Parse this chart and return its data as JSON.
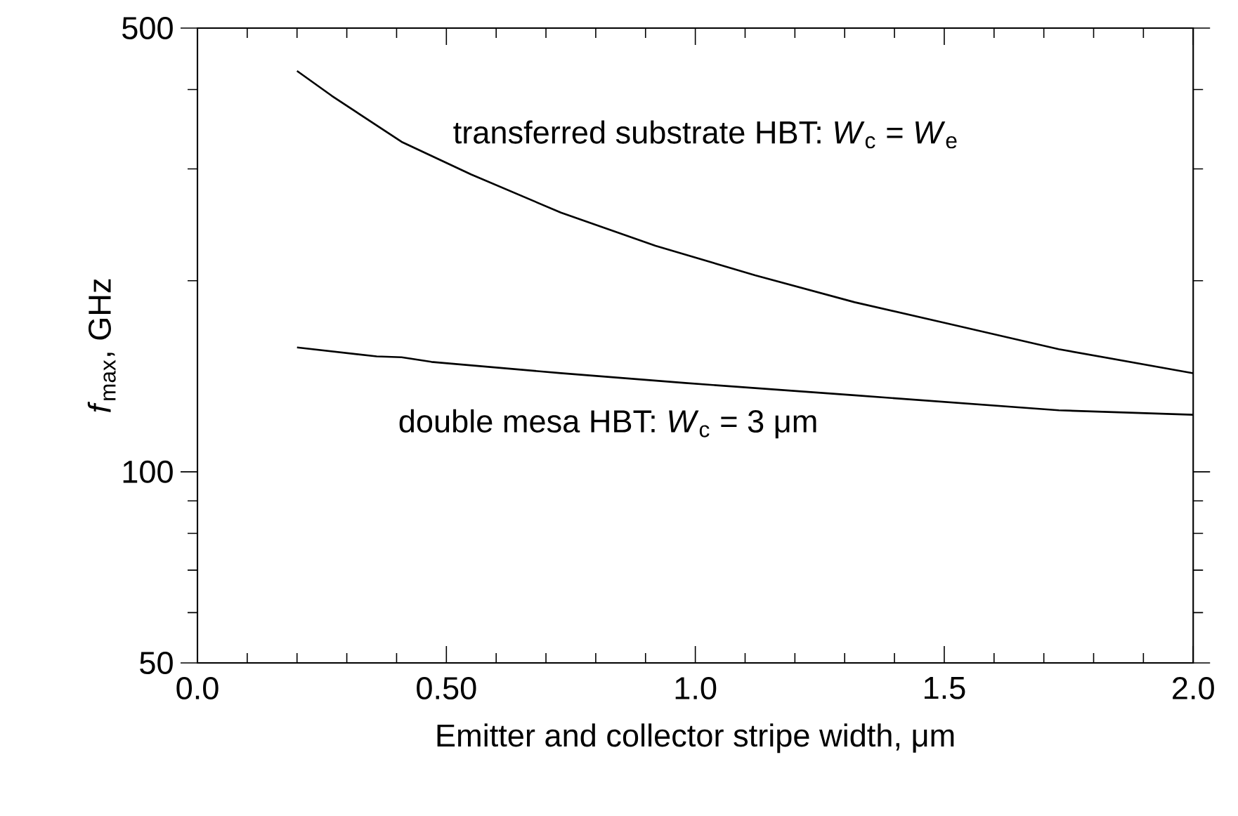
{
  "chart_data": {
    "type": "line",
    "xlabel": "Emitter and collector stripe width,  μm",
    "ylabel": "*f*$_{max}$,  GHz",
    "xlim": [
      0,
      2
    ],
    "ylim": [
      50,
      500
    ],
    "log": "y",
    "grid": false,
    "marker": "none",
    "line_style": "solid",
    "xticks": [
      {
        "value": 0,
        "label": "0.0"
      },
      {
        "value": 0.1,
        "label": null
      },
      {
        "value": 0.2,
        "label": null
      },
      {
        "value": 0.3,
        "label": null
      },
      {
        "value": 0.4,
        "label": null
      },
      {
        "value": 0.5,
        "label": "0.50"
      },
      {
        "value": 0.6,
        "label": null
      },
      {
        "value": 0.7,
        "label": null
      },
      {
        "value": 0.8,
        "label": null
      },
      {
        "value": 0.9,
        "label": null
      },
      {
        "value": 1,
        "label": "1.0"
      },
      {
        "value": 1.1,
        "label": null
      },
      {
        "value": 1.2,
        "label": null
      },
      {
        "value": 1.3,
        "label": null
      },
      {
        "value": 1.4,
        "label": null
      },
      {
        "value": 1.5,
        "label": "1.5"
      },
      {
        "value": 1.6,
        "label": null
      },
      {
        "value": 1.7,
        "label": null
      },
      {
        "value": 1.8,
        "label": null
      },
      {
        "value": 1.9,
        "label": null
      },
      {
        "value": 2,
        "label": "2.0"
      }
    ],
    "yticks": [
      50,
      {
        "value": 60,
        "label": null
      },
      {
        "value": 70,
        "label": null
      },
      {
        "value": 80,
        "label": null
      },
      {
        "value": 90,
        "label": null
      },
      100,
      {
        "value": 200,
        "label": null
      },
      {
        "value": 300,
        "label": null
      },
      {
        "value": 400,
        "label": null
      },
      500
    ],
    "annotations": [
      "transferred substrate HBT: *W*$_{c}$ = *W*$_{e}$",
      "double mesa HBT: *W*$_{c}$ = 3 μm"
    ],
    "series": [
      {
        "color": "#000000",
        "x": [
          0.2,
          0.27,
          0.41,
          0.55,
          0.73,
          0.92,
          1.12,
          1.32,
          1.51,
          1.73,
          2.0
        ],
        "values": [
          428,
          391,
          331,
          294,
          256,
          227,
          204,
          185,
          171,
          156,
          143
        ]
      },
      {
        "color": "#000000",
        "x": [
          0.2,
          0.36,
          0.41,
          0.47,
          0.73,
          0.98,
          1.32,
          1.73,
          2.0
        ],
        "values": [
          157,
          152,
          151.5,
          149,
          143,
          138,
          132,
          125,
          123
        ]
      }
    ]
  }
}
